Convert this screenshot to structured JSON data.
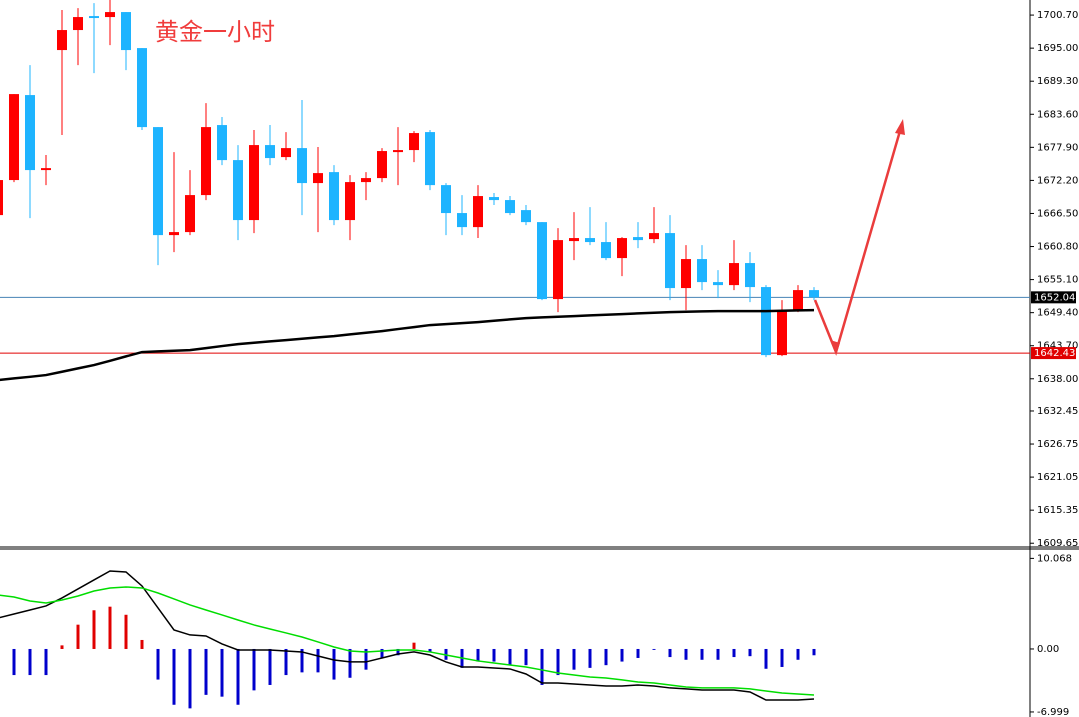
{
  "chart_data": [
    {
      "type": "candlestick",
      "title": "黄金一小时",
      "up_color": "#ff0000",
      "down_color": "#1eb4ff",
      "open": [
        1666.22,
        1672.26,
        1686.91,
        1673.98,
        1694.67,
        1698.12,
        1700.53,
        1700.36,
        1701.22,
        1695.01,
        1681.39,
        1662.77,
        1663.29,
        1669.67,
        1681.74,
        1675.7,
        1665.36,
        1678.29,
        1676.22,
        1677.77,
        1671.74,
        1673.63,
        1665.36,
        1671.91,
        1672.6,
        1677.08,
        1677.43,
        1680.53,
        1671.39,
        1666.57,
        1664.15,
        1669.33,
        1668.81,
        1667.08,
        1665.01,
        1651.74,
        1661.74,
        1662.26,
        1661.57,
        1658.81,
        1662.43,
        1662.08,
        1663.12,
        1653.64,
        1658.64,
        1654.67,
        1654.15,
        1657.95,
        1653.81,
        1642.08,
        1649.84,
        1653.29
      ],
      "high": [
        1677.43,
        1687.08,
        1692.08,
        1676.57,
        1701.57,
        1701.91,
        1702.77,
        1703.29,
        1701.22,
        1695.01,
        1681.39,
        1677.08,
        1673.98,
        1685.53,
        1683.12,
        1678.29,
        1680.88,
        1681.74,
        1680.53,
        1686.05,
        1677.95,
        1674.84,
        1673.12,
        1673.63,
        1677.77,
        1681.39,
        1680.7,
        1680.88,
        1671.74,
        1669.67,
        1671.39,
        1670.02,
        1669.5,
        1667.95,
        1665.01,
        1663.98,
        1666.74,
        1667.6,
        1665.01,
        1662.43,
        1665.01,
        1667.6,
        1666.22,
        1661.05,
        1661.05,
        1656.74,
        1661.91,
        1659.84,
        1654.15,
        1651.57,
        1654.15,
        1653.81
      ],
      "low": [
        1665.7,
        1671.91,
        1665.7,
        1671.39,
        1680.02,
        1692.08,
        1690.7,
        1695.53,
        1691.22,
        1680.88,
        1657.6,
        1659.84,
        1662.77,
        1668.81,
        1674.84,
        1661.91,
        1663.12,
        1674.84,
        1675.7,
        1666.22,
        1663.29,
        1664.5,
        1661.91,
        1668.81,
        1671.91,
        1671.39,
        1675.36,
        1670.53,
        1662.77,
        1662.77,
        1662.26,
        1667.95,
        1666.22,
        1664.5,
        1651.57,
        1649.5,
        1658.46,
        1661.05,
        1658.46,
        1655.7,
        1660.53,
        1661.39,
        1651.57,
        1649.84,
        1653.29,
        1651.91,
        1653.29,
        1651.22,
        1641.74,
        1641.91,
        1649.5,
        1651.57
      ],
      "close": [
        1672.26,
        1687.08,
        1673.98,
        1674.32,
        1698.12,
        1700.36,
        1700.19,
        1701.22,
        1694.67,
        1681.39,
        1662.77,
        1663.29,
        1669.67,
        1681.39,
        1675.7,
        1665.36,
        1678.29,
        1676.05,
        1677.77,
        1671.74,
        1673.46,
        1665.36,
        1671.91,
        1672.6,
        1677.26,
        1677.43,
        1680.36,
        1671.39,
        1666.57,
        1664.15,
        1669.5,
        1668.81,
        1666.57,
        1665.01,
        1651.74,
        1661.91,
        1662.26,
        1661.57,
        1658.81,
        1662.26,
        1661.91,
        1663.12,
        1653.64,
        1658.64,
        1654.67,
        1654.15,
        1657.95,
        1653.81,
        1642.08,
        1649.84,
        1653.29,
        1652.04
      ],
      "moving_average": {
        "color": "#000000",
        "values": [
          1637.77,
          1638.07,
          1638.34,
          1638.64,
          1639.21,
          1639.79,
          1640.36,
          1641.1,
          1641.86,
          1642.6,
          1642.72,
          1642.83,
          1642.95,
          1643.29,
          1643.64,
          1643.98,
          1644.21,
          1644.45,
          1644.67,
          1644.9,
          1645.14,
          1645.36,
          1645.65,
          1645.93,
          1646.22,
          1646.57,
          1646.91,
          1647.26,
          1647.43,
          1647.6,
          1647.77,
          1648.0,
          1648.24,
          1648.46,
          1648.58,
          1648.69,
          1648.81,
          1648.93,
          1649.03,
          1649.15,
          1649.27,
          1649.38,
          1649.5,
          1649.55,
          1649.62,
          1649.67,
          1649.67,
          1649.67,
          1649.67,
          1649.72,
          1649.79,
          1649.84
        ]
      },
      "price_lines": [
        {
          "value": 1652.04,
          "color": "#4682b4",
          "label_bg": "#000000"
        },
        {
          "value": 1642.43,
          "color": "#e00000",
          "label_bg": "#e00000"
        }
      ],
      "ylim": [
        1609.0,
        1703.3
      ],
      "yticks": [
        {
          "value": 1700.7,
          "label": "1700.70"
        },
        {
          "value": 1695.0,
          "label": "1695.00"
        },
        {
          "value": 1689.3,
          "label": "1689.30"
        },
        {
          "value": 1683.6,
          "label": "1683.60"
        },
        {
          "value": 1677.9,
          "label": "1677.90"
        },
        {
          "value": 1672.2,
          "label": "1672.20"
        },
        {
          "value": 1666.5,
          "label": "1666.50"
        },
        {
          "value": 1660.8,
          "label": "1660.80"
        },
        {
          "value": 1655.1,
          "label": "1655.10"
        },
        {
          "value": 1649.4,
          "label": "1649.40"
        },
        {
          "value": 1643.7,
          "label": "1643.70"
        },
        {
          "value": 1638.0,
          "label": "1638.00"
        },
        1632.45,
        1626.75,
        1621.05,
        1615.35,
        1609.65
      ]
    },
    {
      "type": "macd",
      "histogram": {
        "positive_color": "#e00000",
        "negative_color": "#0000cc",
        "values": [
          null,
          -2.9,
          -2.9,
          -2.9,
          0.4,
          2.7,
          4.3,
          4.7,
          3.8,
          1.0,
          -3.4,
          -6.2,
          -6.6,
          -5.1,
          -5.3,
          -6.2,
          -4.6,
          -4.0,
          -2.9,
          -2.6,
          -2.6,
          -3.4,
          -3.2,
          -2.3,
          -1.0,
          -0.7,
          0.7,
          -0.3,
          -1.2,
          -2.1,
          -1.4,
          -1.4,
          -1.8,
          -1.8,
          -4.0,
          -2.9,
          -2.3,
          -2.1,
          -1.8,
          -1.4,
          -1.0,
          -0.1,
          -0.9,
          -1.2,
          -1.2,
          -1.2,
          -0.9,
          -0.8,
          -2.2,
          -2.0,
          -1.2,
          -0.7
        ]
      },
      "series": [
        {
          "color": "#000000",
          "values": [
            3.44,
            3.89,
            4.33,
            4.78,
            5.67,
            6.67,
            7.67,
            8.67,
            8.56,
            7.0,
            4.56,
            2.11,
            1.56,
            1.44,
            0.56,
            -0.11,
            -0.11,
            -0.11,
            -0.22,
            -0.33,
            -0.78,
            -1.22,
            -1.44,
            -1.44,
            -1.0,
            -0.56,
            -0.33,
            -0.67,
            -1.44,
            -2.0,
            -2.0,
            -2.11,
            -2.22,
            -2.78,
            -3.78,
            -3.78,
            -3.89,
            -4.0,
            -4.11,
            -4.11,
            -4.0,
            -4.11,
            -4.33,
            -4.44,
            -4.56,
            -4.56,
            -4.56,
            -4.78,
            -5.67,
            -5.67,
            -5.67,
            -5.56
          ]
        },
        {
          "color": "#00dd00",
          "values": [
            6.0,
            5.78,
            5.33,
            5.11,
            5.44,
            5.89,
            6.44,
            6.78,
            6.89,
            6.78,
            6.22,
            5.56,
            4.89,
            4.33,
            3.78,
            3.22,
            2.67,
            2.22,
            1.78,
            1.33,
            0.78,
            0.22,
            -0.22,
            -0.33,
            -0.22,
            -0.11,
            -0.11,
            -0.33,
            -0.67,
            -1.0,
            -1.33,
            -1.56,
            -1.78,
            -2.0,
            -2.33,
            -2.67,
            -2.89,
            -3.11,
            -3.22,
            -3.44,
            -3.67,
            -3.78,
            -4.0,
            -4.22,
            -4.33,
            -4.33,
            -4.33,
            -4.44,
            -4.67,
            -4.89,
            -5.0,
            -5.11
          ]
        }
      ],
      "ylim": [
        -7.56,
        11.11
      ],
      "yticks": [
        10.068,
        {
          "value": 0,
          "label": "0.00"
        },
        -6.999
      ]
    }
  ]
}
